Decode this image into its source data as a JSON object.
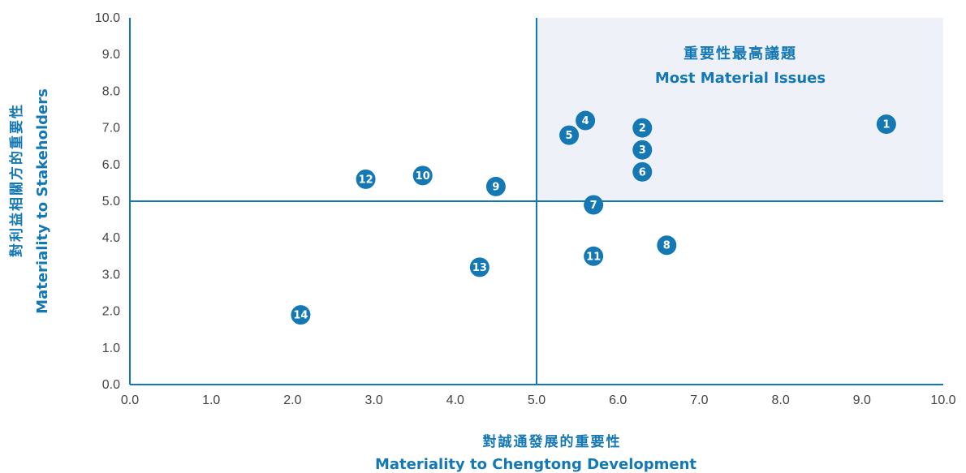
{
  "chart_data": {
    "type": "scatter",
    "xlabel_zh": "對誠通發展的重要性",
    "xlabel_en": "Materiality to Chengtong Development",
    "ylabel_zh": "對利益相關方的重要性",
    "ylabel_en": "Materiality to Stakeholders",
    "xlim": [
      0,
      10
    ],
    "ylim": [
      0,
      10
    ],
    "x_ticks": [
      "0.0",
      "1.0",
      "2.0",
      "3.0",
      "4.0",
      "5.0",
      "6.0",
      "7.0",
      "8.0",
      "9.0",
      "10.0"
    ],
    "y_ticks": [
      "0.0",
      "1.0",
      "2.0",
      "3.0",
      "4.0",
      "5.0",
      "6.0",
      "7.0",
      "8.0",
      "9.0",
      "10.0"
    ],
    "threshold_x": 5.0,
    "threshold_y": 5.0,
    "highlight_quadrant": {
      "label_zh": "重要性最高議題",
      "label_en": "Most Material Issues",
      "color": "#eef2f8"
    },
    "grid": false,
    "points": [
      {
        "label": "1",
        "x": 9.3,
        "y": 7.1
      },
      {
        "label": "2",
        "x": 6.3,
        "y": 7.0
      },
      {
        "label": "3",
        "x": 6.3,
        "y": 6.4
      },
      {
        "label": "4",
        "x": 5.6,
        "y": 7.2
      },
      {
        "label": "5",
        "x": 5.4,
        "y": 6.8
      },
      {
        "label": "6",
        "x": 6.3,
        "y": 5.8
      },
      {
        "label": "7",
        "x": 5.7,
        "y": 4.9
      },
      {
        "label": "8",
        "x": 6.6,
        "y": 3.8
      },
      {
        "label": "9",
        "x": 4.5,
        "y": 5.4
      },
      {
        "label": "10",
        "x": 3.6,
        "y": 5.7
      },
      {
        "label": "11",
        "x": 5.7,
        "y": 3.5
      },
      {
        "label": "12",
        "x": 2.9,
        "y": 5.6
      },
      {
        "label": "13",
        "x": 4.3,
        "y": 3.2
      },
      {
        "label": "14",
        "x": 2.1,
        "y": 1.9
      }
    ]
  },
  "colors": {
    "axis": "#1478b4",
    "point": "#1478b4",
    "point_text": "#ffffff",
    "tick_text": "#444444"
  }
}
